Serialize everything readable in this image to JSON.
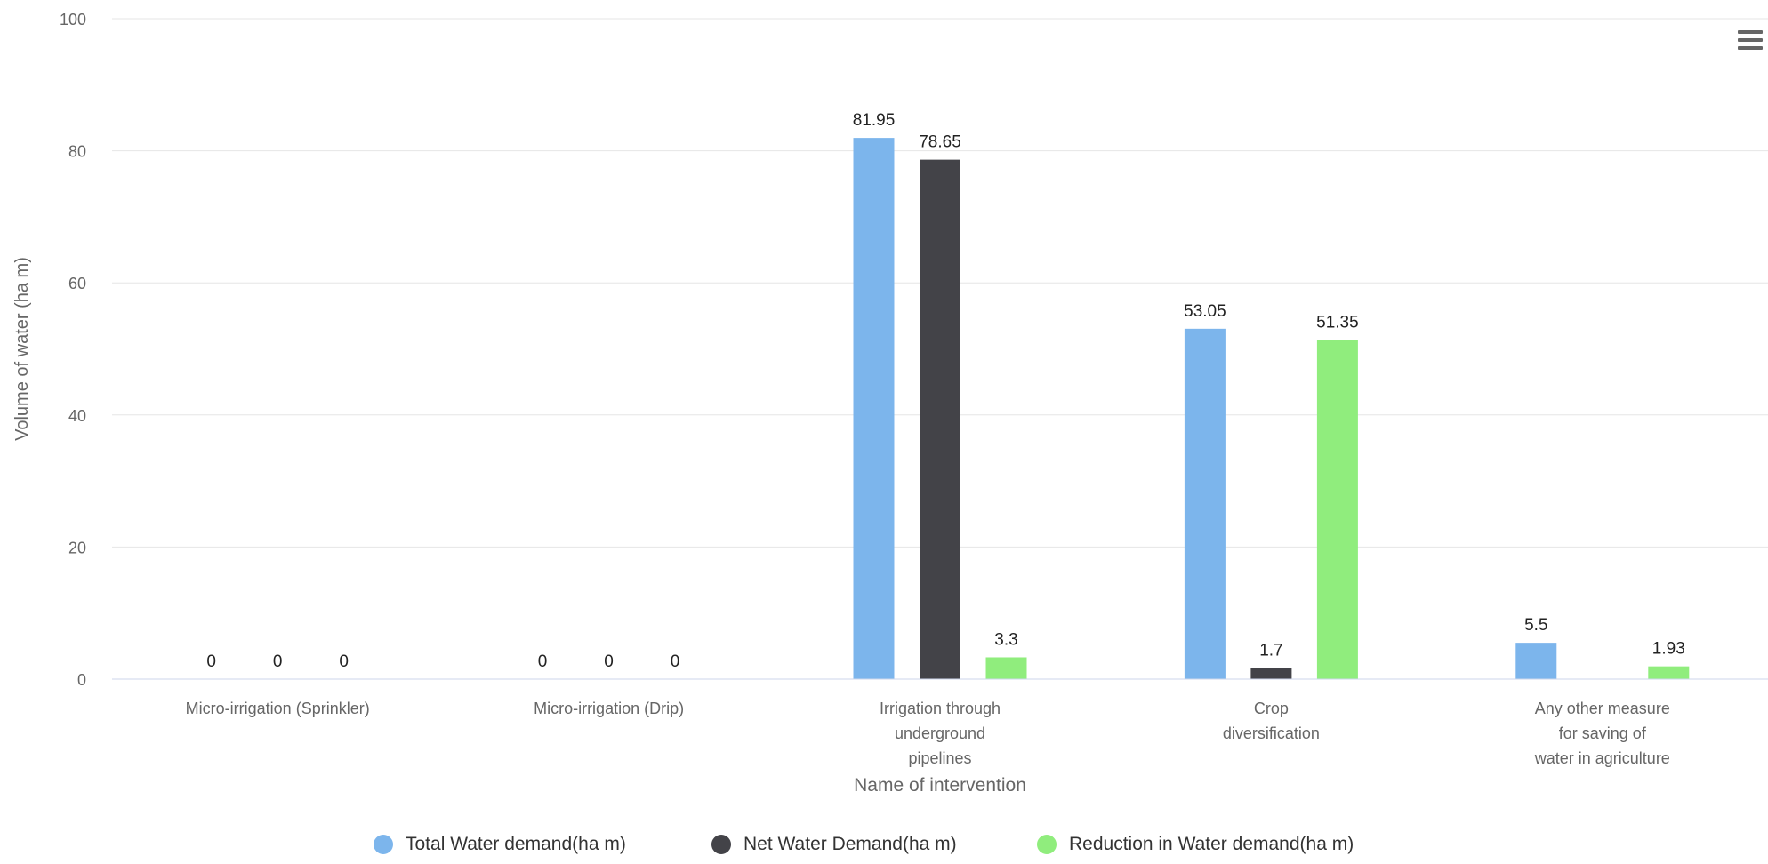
{
  "chart_data": {
    "type": "bar",
    "title": "",
    "xlabel": "Name of intervention",
    "ylabel": "Volume of water (ha m)",
    "ylim": [
      0,
      100
    ],
    "yticks": [
      0,
      20,
      40,
      60,
      80,
      100
    ],
    "grid": true,
    "legend_position": "bottom",
    "categories": [
      [
        "Micro-irrigation (Sprinkler)"
      ],
      [
        "Micro-irrigation (Drip)"
      ],
      [
        "Irrigation through",
        "underground",
        "pipelines"
      ],
      [
        "Crop",
        "diversification"
      ],
      [
        "Any other measure",
        "for saving of",
        "water in agriculture"
      ]
    ],
    "series": [
      {
        "name": "Total Water demand(ha m)",
        "color": "#7cb5ec",
        "values": [
          0,
          0,
          81.95,
          53.05,
          5.5
        ],
        "labels": [
          "0",
          "0",
          "81.95",
          "53.05",
          "5.5"
        ]
      },
      {
        "name": "Net Water Demand(ha m)",
        "color": "#434348",
        "values": [
          0,
          0,
          78.65,
          1.7,
          null
        ],
        "labels": [
          "0",
          "0",
          "78.65",
          "1.7",
          null
        ]
      },
      {
        "name": "Reduction in Water demand(ha m)",
        "color": "#90ed7d",
        "values": [
          0,
          0,
          3.3,
          51.35,
          1.93
        ],
        "labels": [
          "0",
          "0",
          "3.3",
          "51.35",
          "1.93"
        ]
      }
    ]
  },
  "context_menu": {
    "icon": "hamburger-menu-icon"
  }
}
